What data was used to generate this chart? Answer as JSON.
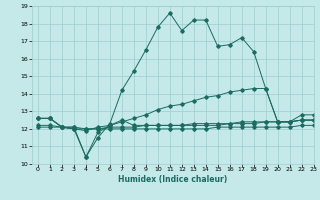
{
  "xlabel": "Humidex (Indice chaleur)",
  "xlim": [
    -0.5,
    23
  ],
  "ylim": [
    10,
    19
  ],
  "xticks": [
    0,
    1,
    2,
    3,
    4,
    5,
    6,
    7,
    8,
    9,
    10,
    11,
    12,
    13,
    14,
    15,
    16,
    17,
    18,
    19,
    20,
    21,
    22,
    23
  ],
  "yticks": [
    10,
    11,
    12,
    13,
    14,
    15,
    16,
    17,
    18,
    19
  ],
  "bg_color": "#c5e8e8",
  "grid_color": "#9fcece",
  "line_color": "#1a6b60",
  "line1_y": [
    12.6,
    12.6,
    12.1,
    12.1,
    10.4,
    11.5,
    12.3,
    14.2,
    15.3,
    16.5,
    17.8,
    18.6,
    17.6,
    18.2,
    18.2,
    16.7,
    16.8,
    17.2,
    16.4,
    14.3,
    12.4,
    12.4,
    12.8,
    12.8
  ],
  "line2_y": [
    12.6,
    12.6,
    12.1,
    12.0,
    11.9,
    12.1,
    12.2,
    12.4,
    12.6,
    12.8,
    13.1,
    13.3,
    13.4,
    13.6,
    13.8,
    13.9,
    14.1,
    14.2,
    14.3,
    14.3,
    12.4,
    12.4,
    12.5,
    12.5
  ],
  "line3_y": [
    12.2,
    12.2,
    12.1,
    12.1,
    12.0,
    12.0,
    12.1,
    12.1,
    12.1,
    12.2,
    12.2,
    12.2,
    12.2,
    12.3,
    12.3,
    12.3,
    12.3,
    12.4,
    12.4,
    12.4,
    12.4,
    12.4,
    12.5,
    12.5
  ],
  "line4_y": [
    12.1,
    12.1,
    12.1,
    12.0,
    12.0,
    12.0,
    12.0,
    12.0,
    12.0,
    12.0,
    12.0,
    12.0,
    12.0,
    12.0,
    12.0,
    12.1,
    12.1,
    12.1,
    12.1,
    12.1,
    12.1,
    12.1,
    12.2,
    12.2
  ],
  "line5_y": [
    12.6,
    12.6,
    12.1,
    12.0,
    10.4,
    11.8,
    12.2,
    12.5,
    12.2,
    12.2,
    12.2,
    12.2,
    12.2,
    12.2,
    12.2,
    12.2,
    12.3,
    12.3,
    12.3,
    12.4,
    12.4,
    12.4,
    12.5,
    12.5
  ]
}
